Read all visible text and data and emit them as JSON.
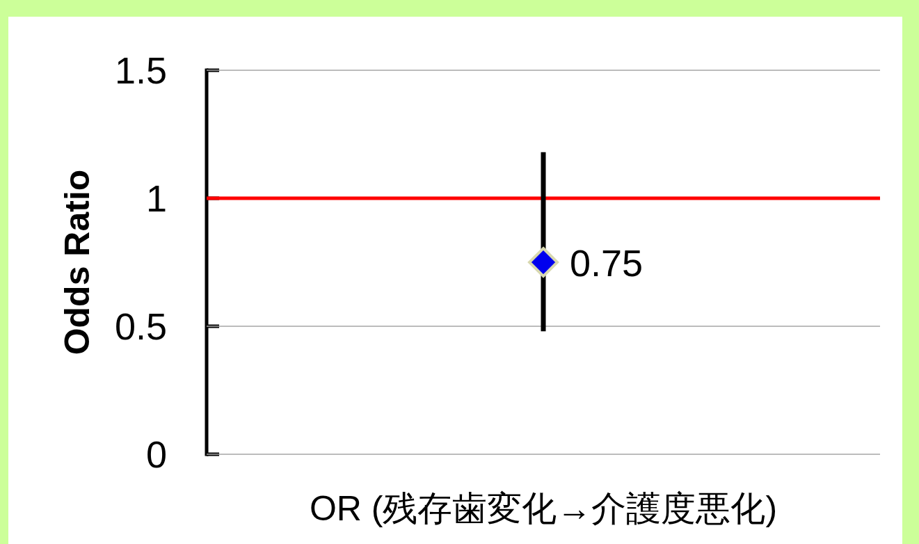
{
  "chart_data": {
    "type": "scatter",
    "xlabel": "OR (残存歯変化→介護度悪化)",
    "ylabel": "Odds Ratio",
    "categories": [
      null
    ],
    "series": [
      {
        "color": "#0000ee",
        "values": [
          0.75
        ],
        "errors": [
          [
            0.48,
            1.18
          ]
        ],
        "value_labels": [
          "0.75"
        ]
      }
    ],
    "marker": "diamond",
    "ylim": [
      0,
      1.5
    ],
    "yticks": [
      0,
      0.5,
      1,
      1.5
    ],
    "ref_lines": [
      {
        "axis": "y",
        "value": 0,
        "color": "#a6a6a6",
        "line_style": "solid"
      },
      {
        "axis": "y",
        "value": 0.5,
        "color": "#a6a6a6",
        "line_style": "solid"
      },
      {
        "axis": "y",
        "value": 1.5,
        "color": "#a6a6a6",
        "line_style": "solid"
      },
      {
        "axis": "y",
        "value": 1,
        "color": "#ff0000",
        "line_style": "solid"
      }
    ]
  }
}
